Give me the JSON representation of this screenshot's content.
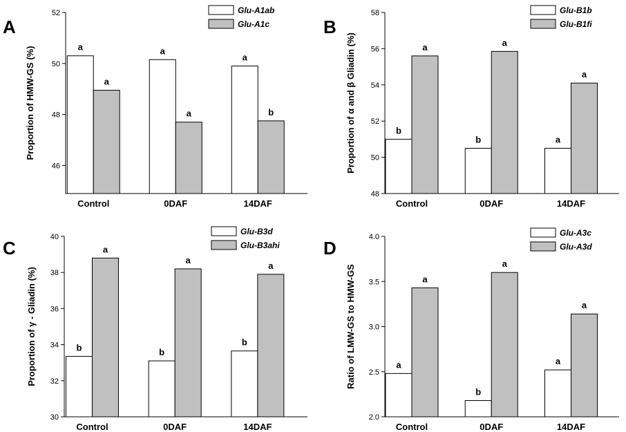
{
  "chart_data": [
    {
      "type": "bar",
      "panel_label": "A",
      "categories": [
        "Control",
        "0DAF",
        "14DAF"
      ],
      "series": [
        {
          "name": "Glu-A1ab",
          "color": "#ffffff",
          "values": [
            50.3,
            50.15,
            49.9
          ],
          "labels": [
            "a",
            "a",
            "a"
          ]
        },
        {
          "name": "Glu-A1c",
          "color": "#c0c0c0",
          "values": [
            48.95,
            47.7,
            47.75
          ],
          "labels": [
            "a",
            "a",
            "b"
          ]
        }
      ],
      "ylabel": "Proportion of HMW-GS (%)",
      "ylim": [
        44.9,
        52
      ],
      "yticks": [
        46,
        48,
        50,
        52
      ],
      "legend_position": "top-right"
    },
    {
      "type": "bar",
      "panel_label": "B",
      "categories": [
        "Control",
        "0DAF",
        "14DAF"
      ],
      "series": [
        {
          "name": "Glu-B1b",
          "color": "#ffffff",
          "values": [
            51.0,
            50.5,
            50.5
          ],
          "labels": [
            "b",
            "b",
            "a"
          ]
        },
        {
          "name": "Glu-B1fi",
          "color": "#c0c0c0",
          "values": [
            55.6,
            55.85,
            54.1
          ],
          "labels": [
            "a",
            "a",
            "a"
          ]
        }
      ],
      "ylabel": "Proportion of α and β Gliadin (%)",
      "ylim": [
        48,
        58
      ],
      "yticks": [
        48,
        50,
        52,
        54,
        56,
        58
      ],
      "legend_position": "top-right"
    },
    {
      "type": "bar",
      "panel_label": "C",
      "categories": [
        "Control",
        "0DAF",
        "14DAF"
      ],
      "series": [
        {
          "name": "Glu-B3d",
          "color": "#ffffff",
          "values": [
            33.35,
            33.1,
            33.65
          ],
          "labels": [
            "b",
            "b",
            "b"
          ]
        },
        {
          "name": "Glu-B3ahi",
          "color": "#c0c0c0",
          "values": [
            38.8,
            38.2,
            37.9
          ],
          "labels": [
            "a",
            "a",
            "a"
          ]
        }
      ],
      "ylabel": "Proportion of γ - Gliadin (%)",
      "ylim": [
        30,
        40
      ],
      "yticks": [
        30,
        32,
        34,
        36,
        38,
        40
      ],
      "legend_position": "top-right"
    },
    {
      "type": "bar",
      "panel_label": "D",
      "categories": [
        "Control",
        "0DAF",
        "14DAF"
      ],
      "series": [
        {
          "name": "Glu-A3c",
          "color": "#ffffff",
          "values": [
            2.48,
            2.18,
            2.52
          ],
          "labels": [
            "a",
            "b",
            "a"
          ]
        },
        {
          "name": "Glu-A3d",
          "color": "#c0c0c0",
          "values": [
            3.43,
            3.6,
            3.14
          ],
          "labels": [
            "a",
            "a",
            "a"
          ]
        }
      ],
      "ylabel": "Ratio of LMW-GS to HMW-GS",
      "ylim": [
        2.0,
        4.0
      ],
      "yticks": [
        "2.0",
        "2.5",
        "3.0",
        "3.5",
        "4.0"
      ],
      "legend_position": "top-left"
    }
  ]
}
